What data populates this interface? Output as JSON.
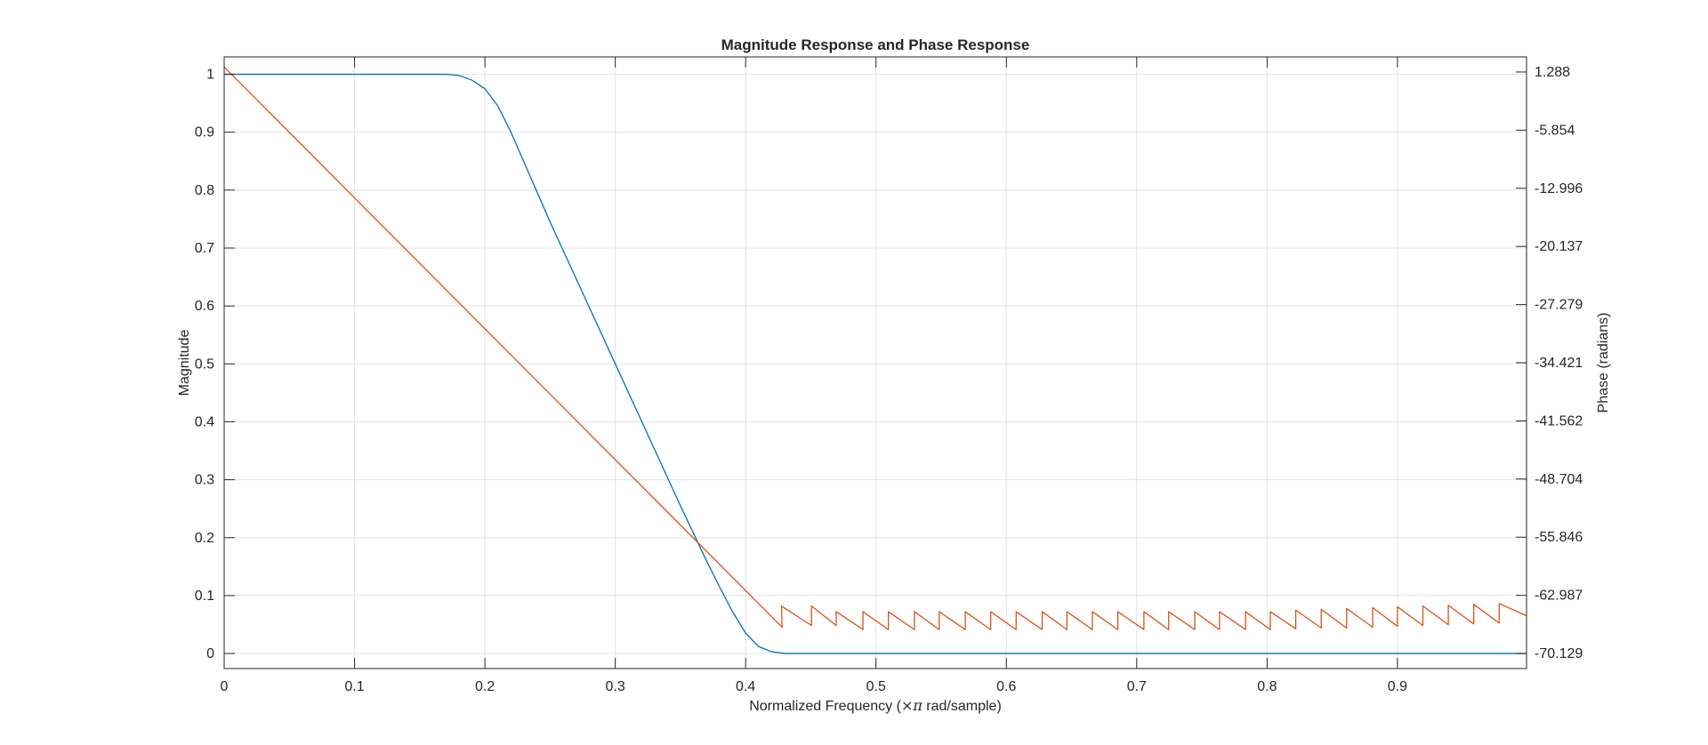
{
  "chart_data": {
    "type": "line",
    "title": "Magnitude Response and Phase Response",
    "xlabel_pre": "Normalized Frequency  (",
    "xlabel_sym": "×π",
    "xlabel_post": " rad/sample)",
    "ylabel_left": "Magnitude",
    "ylabel_right": "Phase (radians)",
    "xlim": [
      0,
      0.999
    ],
    "ylim_left": [
      -0.026,
      1.03
    ],
    "ylim_right": [
      -71.98,
      3.14
    ],
    "grid": true,
    "x_ticks": [
      0,
      0.1,
      0.2,
      0.3,
      0.4,
      0.5,
      0.6,
      0.7,
      0.8,
      0.9
    ],
    "x_tick_labels": [
      "0",
      "0.1",
      "0.2",
      "0.3",
      "0.4",
      "0.5",
      "0.6",
      "0.7",
      "0.8",
      "0.9"
    ],
    "y_left_ticks": [
      0,
      0.1,
      0.2,
      0.3,
      0.4,
      0.5,
      0.6,
      0.7,
      0.8,
      0.9,
      1
    ],
    "y_left_tick_labels": [
      "0",
      "0.1",
      "0.2",
      "0.3",
      "0.4",
      "0.5",
      "0.6",
      "0.7",
      "0.8",
      "0.9",
      "1"
    ],
    "y_right_ticks": [
      1.288,
      -5.854,
      -12.996,
      -20.137,
      -27.279,
      -34.421,
      -41.562,
      -48.704,
      -55.846,
      -62.987,
      -70.129
    ],
    "y_right_tick_labels": [
      "1.288",
      "-5.854",
      "-12.996",
      "-20.137",
      "-27.279",
      "-34.421",
      "-41.562",
      "-48.704",
      "-55.846",
      "-62.987",
      "-70.129"
    ],
    "series": [
      {
        "axis": "left",
        "color": "#0072BD",
        "x": [
          0,
          0.1,
          0.17,
          0.18,
          0.19,
          0.2,
          0.21,
          0.22,
          0.25,
          0.3,
          0.35,
          0.37,
          0.38,
          0.39,
          0.4,
          0.41,
          0.42,
          0.43,
          0.5,
          0.6,
          0.7,
          0.8,
          0.9,
          0.999
        ],
        "values": [
          1,
          1,
          1,
          0.998,
          0.99,
          0.975,
          0.945,
          0.9,
          0.745,
          0.5,
          0.255,
          0.16,
          0.115,
          0.072,
          0.035,
          0.012,
          0.003,
          0,
          0,
          0,
          0,
          0,
          0,
          0
        ]
      },
      {
        "axis": "right",
        "color": "#D95319",
        "x": [
          0,
          0.428,
          0.428,
          0.4275,
          0.4505,
          0.4505,
          0.4695,
          0.4695,
          0.49,
          0.49,
          0.5095,
          0.5095,
          0.5295,
          0.5295,
          0.5485,
          0.5485,
          0.5685,
          0.5685,
          0.588,
          0.588,
          0.6075,
          0.6075,
          0.6275,
          0.6275,
          0.6465,
          0.6465,
          0.666,
          0.666,
          0.6855,
          0.6855,
          0.7055,
          0.7055,
          0.7245,
          0.7245,
          0.7445,
          0.7445,
          0.7635,
          0.7635,
          0.7835,
          0.7835,
          0.8025,
          0.8025,
          0.822,
          0.822,
          0.8415,
          0.8415,
          0.861,
          0.861,
          0.881,
          0.881,
          0.9,
          0.9,
          0.9195,
          0.9195,
          0.939,
          0.939,
          0.9585,
          0.9585,
          0.978,
          0.978,
          0.999
        ],
        "values": [
          1.9,
          -66.9,
          -66.9,
          -64.3,
          -66.7,
          -64.3,
          -66.7,
          -65.0,
          -67.2,
          -65.0,
          -67.2,
          -65.0,
          -67.2,
          -65.0,
          -67.2,
          -65.0,
          -67.2,
          -65.0,
          -67.2,
          -65.0,
          -67.2,
          -65.0,
          -67.2,
          -65.0,
          -67.2,
          -65.0,
          -67.2,
          -65.0,
          -67.2,
          -65.0,
          -67.2,
          -65.0,
          -67.2,
          -65.0,
          -67.2,
          -65.0,
          -67.2,
          -65.0,
          -67.2,
          -65.0,
          -67.2,
          -65.0,
          -67.1,
          -64.8,
          -67.0,
          -64.7,
          -67.0,
          -64.6,
          -66.9,
          -64.5,
          -66.8,
          -64.4,
          -66.7,
          -64.3,
          -66.6,
          -64.2,
          -66.5,
          -64.1,
          -66.4,
          -64.0,
          -65.5
        ]
      }
    ]
  }
}
